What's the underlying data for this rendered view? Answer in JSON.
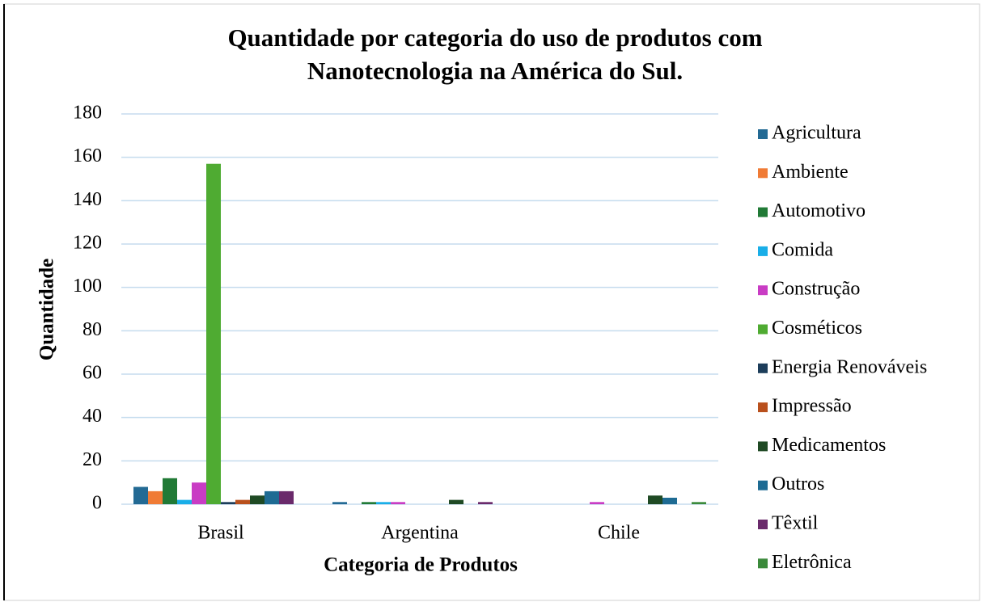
{
  "chart_data": {
    "type": "bar",
    "title": [
      "Quantidade por categoria do uso de produtos com",
      "Nanotecnologia na América do Sul."
    ],
    "x_label": "Categoria de Produtos",
    "y_label": "Quantidade",
    "categories": [
      "Brasil",
      "Argentina",
      "Chile"
    ],
    "series": [
      {
        "name": "Agricultura",
        "color": "#236a94",
        "values": [
          8,
          1,
          0
        ]
      },
      {
        "name": "Ambiente",
        "color": "#f07b35",
        "values": [
          6,
          0,
          0
        ]
      },
      {
        "name": "Automotivo",
        "color": "#217a36",
        "values": [
          12,
          1,
          0
        ]
      },
      {
        "name": "Comida",
        "color": "#19aee8",
        "values": [
          2,
          1,
          0
        ]
      },
      {
        "name": "Construção",
        "color": "#c93cc4",
        "values": [
          10,
          1,
          1
        ]
      },
      {
        "name": "Cosméticos",
        "color": "#4fab32",
        "values": [
          157,
          0,
          0
        ]
      },
      {
        "name": "Energia Renováveis",
        "color": "#1c3d5a",
        "values": [
          1,
          0,
          0
        ]
      },
      {
        "name": "Impressão",
        "color": "#b9501d",
        "values": [
          2,
          0,
          0
        ]
      },
      {
        "name": "Medicamentos",
        "color": "#1f4a24",
        "values": [
          4,
          2,
          4
        ]
      },
      {
        "name": "Outros",
        "color": "#1e6b93",
        "values": [
          6,
          0,
          3
        ]
      },
      {
        "name": "Têxtil",
        "color": "#6a2a6b",
        "values": [
          6,
          1,
          0
        ]
      },
      {
        "name": "Eletrônica",
        "color": "#3b8a3b",
        "values": [
          0,
          0,
          1
        ]
      }
    ],
    "ylim": [
      0,
      180
    ],
    "yticks": [
      0,
      20,
      40,
      60,
      80,
      100,
      120,
      140,
      160,
      180
    ],
    "grid": true,
    "legend": "right"
  }
}
